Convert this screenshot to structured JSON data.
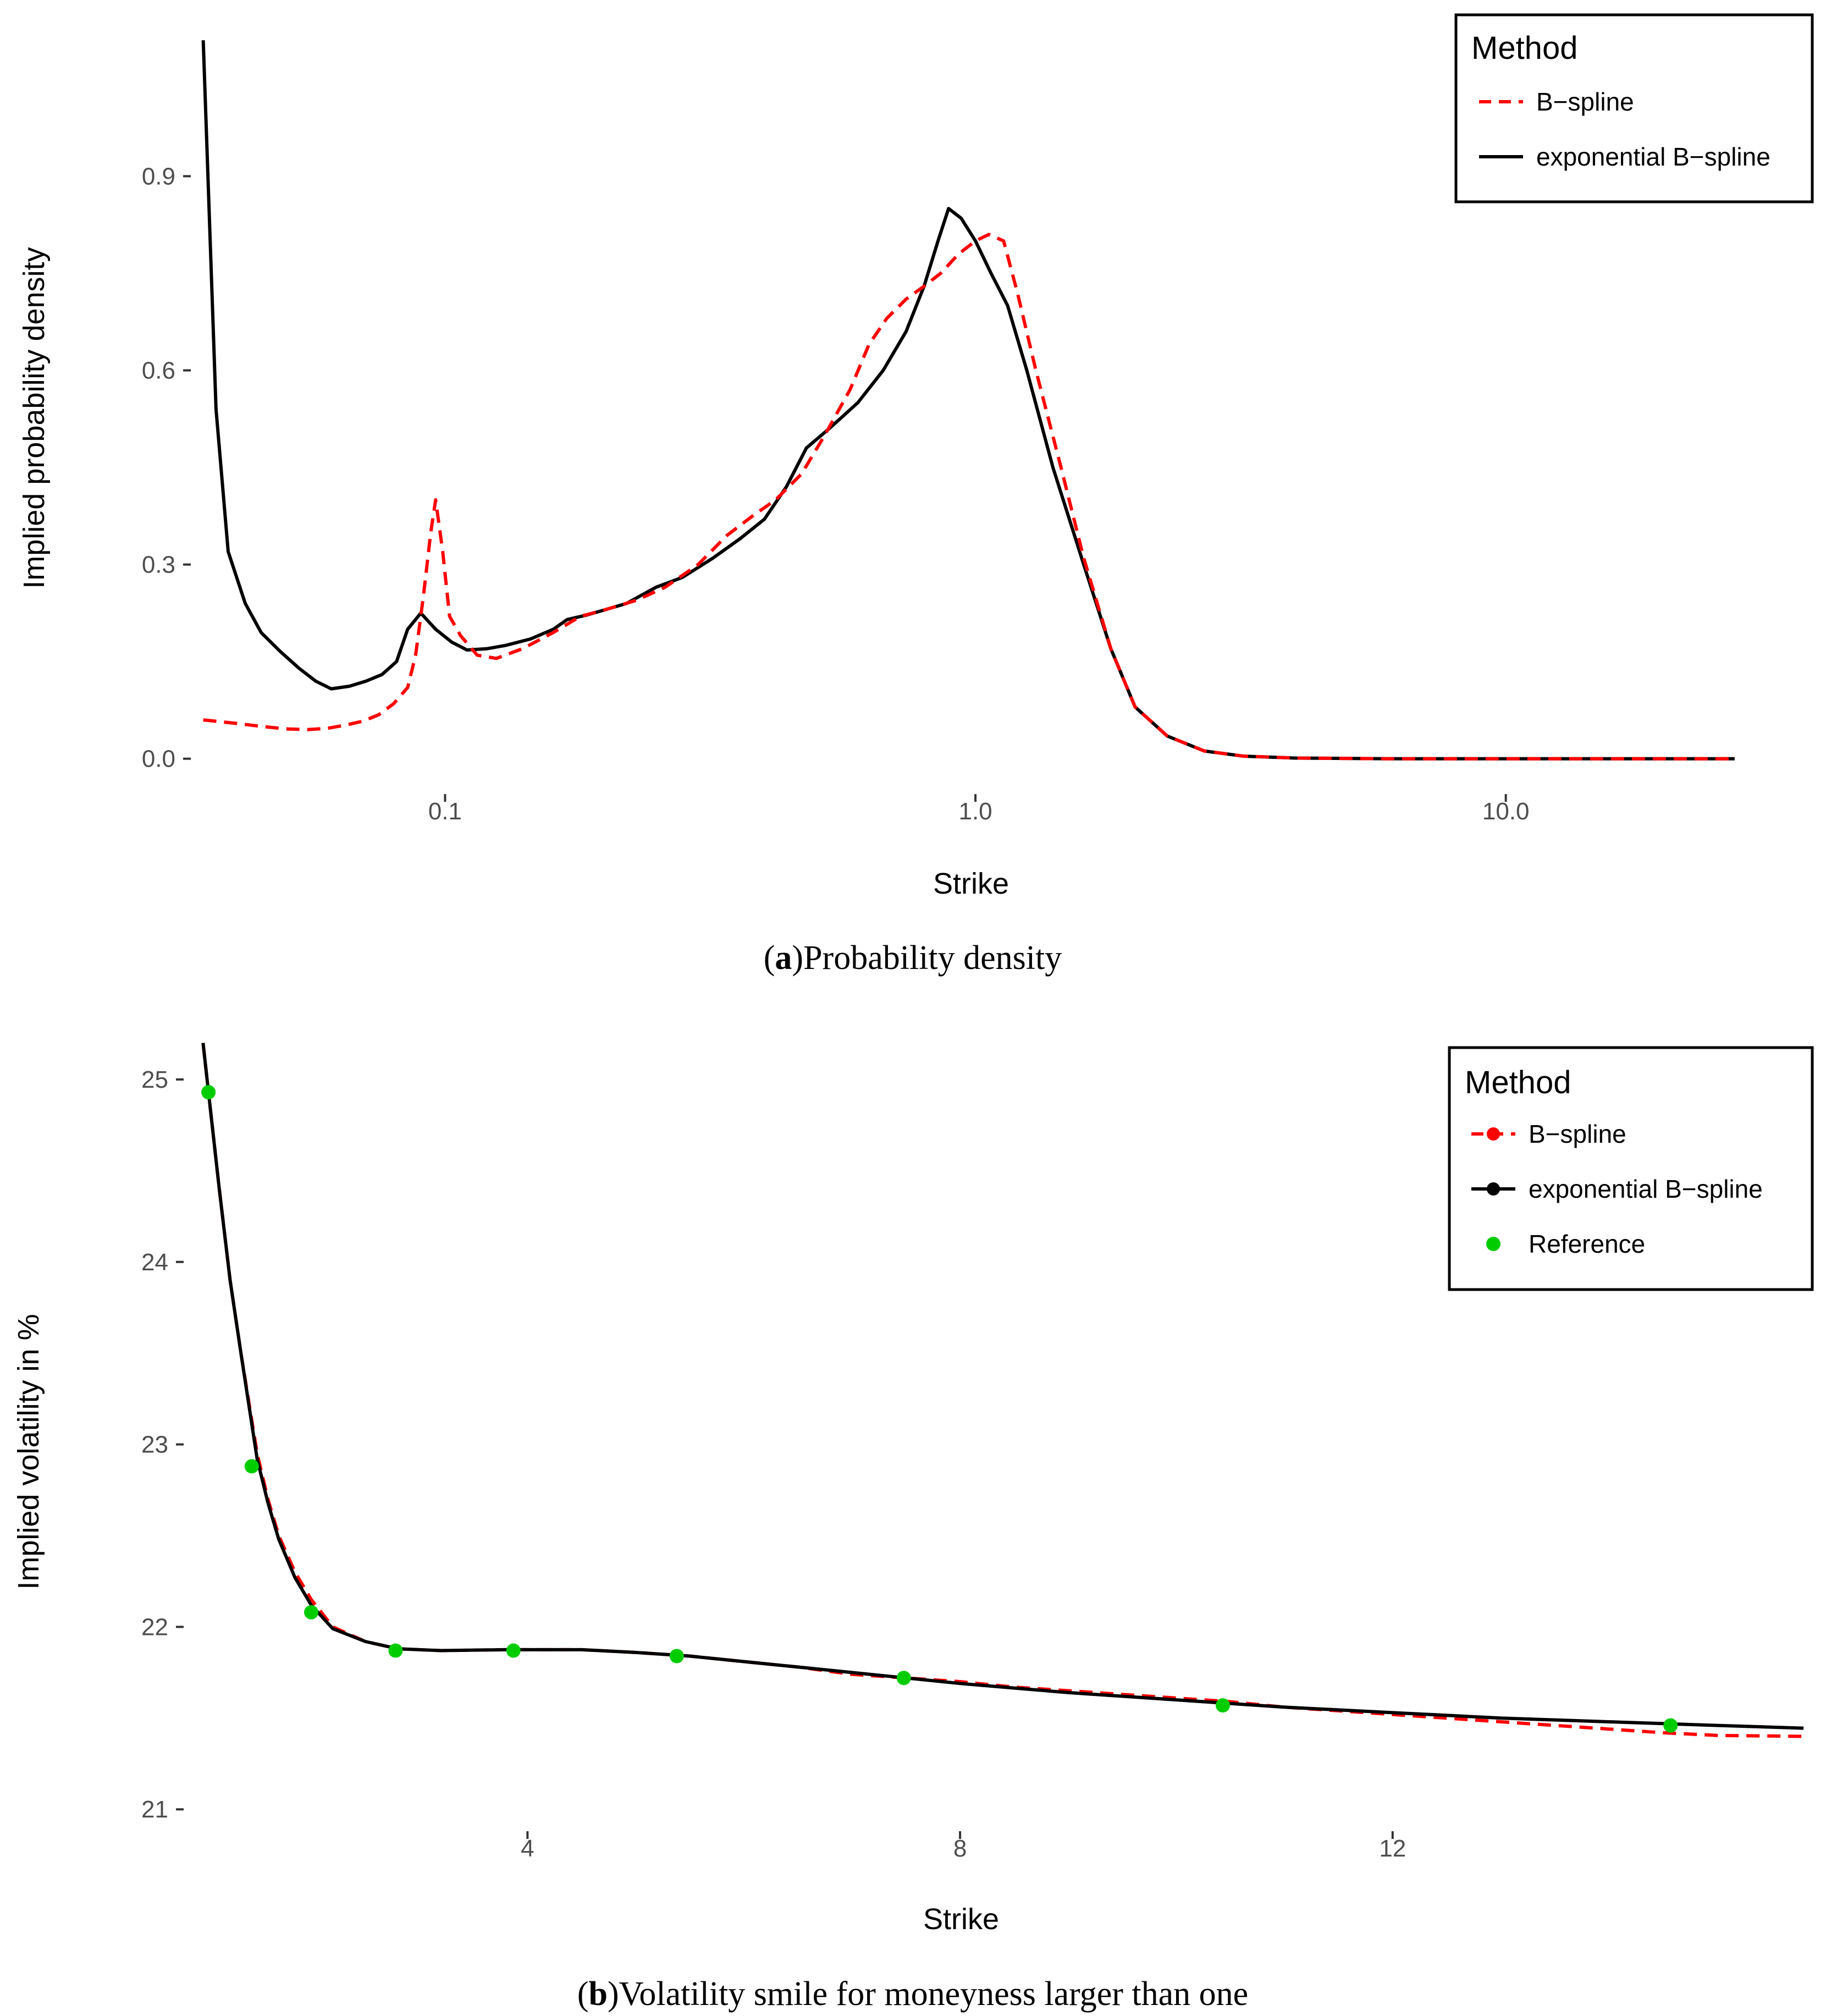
{
  "chart_data": [
    {
      "id": "a",
      "type": "line",
      "caption_letter": "a",
      "caption_text": "Probability density",
      "title": "",
      "xlabel": "Strike",
      "ylabel": "Implied probability density",
      "xscale": "log",
      "xlim": [
        0.033,
        28
      ],
      "ylim": [
        -0.03,
        1.1
      ],
      "xticks": [
        {
          "value": 0.1,
          "label": "0.1"
        },
        {
          "value": 1.0,
          "label": "1.0"
        },
        {
          "value": 10.0,
          "label": "10.0"
        }
      ],
      "yticks": [
        {
          "value": 0.0,
          "label": "0.0"
        },
        {
          "value": 0.3,
          "label": "0.3"
        },
        {
          "value": 0.6,
          "label": "0.6"
        },
        {
          "value": 0.9,
          "label": "0.9"
        }
      ],
      "legend": {
        "title": "Method",
        "position": "top-right",
        "entries": [
          "B−spline",
          "exponential B−spline"
        ]
      },
      "series": [
        {
          "name": "B−spline",
          "color": "#ff0000",
          "style": "dashed",
          "points": [
            [
              0.035,
              0.06
            ],
            [
              0.04,
              0.055
            ],
            [
              0.045,
              0.05
            ],
            [
              0.05,
              0.046
            ],
            [
              0.055,
              0.045
            ],
            [
              0.06,
              0.047
            ],
            [
              0.065,
              0.052
            ],
            [
              0.07,
              0.058
            ],
            [
              0.075,
              0.068
            ],
            [
              0.08,
              0.085
            ],
            [
              0.085,
              0.11
            ],
            [
              0.088,
              0.16
            ],
            [
              0.091,
              0.25
            ],
            [
              0.094,
              0.35
            ],
            [
              0.096,
              0.4
            ],
            [
              0.099,
              0.32
            ],
            [
              0.102,
              0.22
            ],
            [
              0.107,
              0.19
            ],
            [
              0.115,
              0.16
            ],
            [
              0.125,
              0.155
            ],
            [
              0.14,
              0.17
            ],
            [
              0.16,
              0.195
            ],
            [
              0.18,
              0.22
            ],
            [
              0.2,
              0.23
            ],
            [
              0.23,
              0.245
            ],
            [
              0.26,
              0.265
            ],
            [
              0.3,
              0.3
            ],
            [
              0.34,
              0.345
            ],
            [
              0.38,
              0.375
            ],
            [
              0.42,
              0.4
            ],
            [
              0.47,
              0.44
            ],
            [
              0.52,
              0.5
            ],
            [
              0.58,
              0.57
            ],
            [
              0.63,
              0.64
            ],
            [
              0.68,
              0.68
            ],
            [
              0.74,
              0.71
            ],
            [
              0.8,
              0.73
            ],
            [
              0.86,
              0.75
            ],
            [
              0.93,
              0.78
            ],
            [
              1.0,
              0.8
            ],
            [
              1.06,
              0.81
            ],
            [
              1.13,
              0.8
            ],
            [
              1.2,
              0.72
            ],
            [
              1.3,
              0.6
            ],
            [
              1.45,
              0.45
            ],
            [
              1.6,
              0.31
            ],
            [
              1.8,
              0.17
            ],
            [
              2.0,
              0.08
            ],
            [
              2.3,
              0.035
            ],
            [
              2.7,
              0.012
            ],
            [
              3.2,
              0.004
            ],
            [
              4.0,
              0.001
            ],
            [
              6.0,
              0.0
            ],
            [
              10.0,
              0.0
            ],
            [
              27.0,
              0.0
            ]
          ]
        },
        {
          "name": "exponential B−spline",
          "color": "#000000",
          "style": "solid",
          "points": [
            [
              0.035,
              1.11
            ],
            [
              0.037,
              0.54
            ],
            [
              0.039,
              0.32
            ],
            [
              0.042,
              0.24
            ],
            [
              0.045,
              0.195
            ],
            [
              0.049,
              0.165
            ],
            [
              0.053,
              0.14
            ],
            [
              0.057,
              0.12
            ],
            [
              0.061,
              0.108
            ],
            [
              0.066,
              0.112
            ],
            [
              0.071,
              0.12
            ],
            [
              0.076,
              0.13
            ],
            [
              0.081,
              0.15
            ],
            [
              0.085,
              0.2
            ],
            [
              0.09,
              0.225
            ],
            [
              0.096,
              0.2
            ],
            [
              0.103,
              0.18
            ],
            [
              0.11,
              0.168
            ],
            [
              0.12,
              0.17
            ],
            [
              0.13,
              0.175
            ],
            [
              0.145,
              0.185
            ],
            [
              0.16,
              0.2
            ],
            [
              0.17,
              0.215
            ],
            [
              0.185,
              0.222
            ],
            [
              0.2,
              0.23
            ],
            [
              0.22,
              0.24
            ],
            [
              0.25,
              0.265
            ],
            [
              0.28,
              0.28
            ],
            [
              0.32,
              0.31
            ],
            [
              0.36,
              0.34
            ],
            [
              0.4,
              0.37
            ],
            [
              0.44,
              0.42
            ],
            [
              0.48,
              0.48
            ],
            [
              0.53,
              0.51
            ],
            [
              0.6,
              0.55
            ],
            [
              0.67,
              0.6
            ],
            [
              0.74,
              0.66
            ],
            [
              0.8,
              0.73
            ],
            [
              0.85,
              0.8
            ],
            [
              0.89,
              0.85
            ],
            [
              0.94,
              0.835
            ],
            [
              1.0,
              0.8
            ],
            [
              1.07,
              0.75
            ],
            [
              1.15,
              0.7
            ],
            [
              1.25,
              0.6
            ],
            [
              1.4,
              0.45
            ],
            [
              1.6,
              0.3
            ],
            [
              1.8,
              0.17
            ],
            [
              2.0,
              0.08
            ],
            [
              2.3,
              0.035
            ],
            [
              2.7,
              0.012
            ],
            [
              3.2,
              0.004
            ],
            [
              4.0,
              0.001
            ],
            [
              6.0,
              0.0
            ],
            [
              10.0,
              0.0
            ],
            [
              27.0,
              0.0
            ]
          ]
        }
      ]
    },
    {
      "id": "b",
      "type": "line",
      "caption_letter": "b",
      "caption_text": "Volatility smile for moneyness larger than one",
      "title": "",
      "xlabel": "Strike",
      "ylabel": "Implied volatility in %",
      "xscale": "linear",
      "xlim": [
        0.8,
        15.85
      ],
      "ylim": [
        20.85,
        25.25
      ],
      "xticks": [
        {
          "value": 4,
          "label": "4"
        },
        {
          "value": 8,
          "label": "8"
        },
        {
          "value": 12,
          "label": "12"
        }
      ],
      "yticks": [
        {
          "value": 21,
          "label": "21"
        },
        {
          "value": 22,
          "label": "22"
        },
        {
          "value": 23,
          "label": "23"
        },
        {
          "value": 24,
          "label": "24"
        },
        {
          "value": 25,
          "label": "25"
        }
      ],
      "legend": {
        "title": "Method",
        "position": "top-right",
        "entries": [
          "B−spline",
          "exponential B−spline",
          "Reference"
        ]
      },
      "series": [
        {
          "name": "B−spline",
          "color": "#ff0000",
          "style": "dashed",
          "points": [
            [
              1.0,
              25.2
            ],
            [
              1.05,
              24.93
            ],
            [
              1.15,
              24.4
            ],
            [
              1.25,
              23.9
            ],
            [
              1.35,
              23.5
            ],
            [
              1.5,
              22.95
            ],
            [
              1.6,
              22.7
            ],
            [
              1.7,
              22.5
            ],
            [
              1.85,
              22.3
            ],
            [
              2.0,
              22.15
            ],
            [
              2.2,
              22.0
            ],
            [
              2.5,
              21.92
            ],
            [
              2.8,
              21.88
            ],
            [
              3.2,
              21.87
            ],
            [
              3.8,
              21.875
            ],
            [
              4.5,
              21.875
            ],
            [
              5.0,
              21.86
            ],
            [
              5.5,
              21.84
            ],
            [
              6.0,
              21.81
            ],
            [
              6.5,
              21.78
            ],
            [
              7.0,
              21.74
            ],
            [
              7.5,
              21.72
            ],
            [
              8.0,
              21.7
            ],
            [
              8.5,
              21.67
            ],
            [
              9.0,
              21.65
            ],
            [
              9.5,
              21.63
            ],
            [
              10.0,
              21.61
            ],
            [
              10.5,
              21.59
            ],
            [
              11.0,
              21.56
            ],
            [
              11.5,
              21.54
            ],
            [
              12.0,
              21.52
            ],
            [
              12.5,
              21.5
            ],
            [
              13.0,
              21.48
            ],
            [
              13.5,
              21.46
            ],
            [
              14.0,
              21.44
            ],
            [
              14.5,
              21.42
            ],
            [
              15.0,
              21.405
            ],
            [
              15.8,
              21.4
            ]
          ]
        },
        {
          "name": "exponential B−spline",
          "color": "#000000",
          "style": "solid",
          "points": [
            [
              1.0,
              25.2
            ],
            [
              1.05,
              24.93
            ],
            [
              1.15,
              24.4
            ],
            [
              1.25,
              23.9
            ],
            [
              1.35,
              23.5
            ],
            [
              1.5,
              22.92
            ],
            [
              1.6,
              22.68
            ],
            [
              1.7,
              22.48
            ],
            [
              1.85,
              22.27
            ],
            [
              2.0,
              22.12
            ],
            [
              2.2,
              21.99
            ],
            [
              2.5,
              21.92
            ],
            [
              2.8,
              21.88
            ],
            [
              3.2,
              21.87
            ],
            [
              3.8,
              21.875
            ],
            [
              4.5,
              21.875
            ],
            [
              5.0,
              21.86
            ],
            [
              5.5,
              21.84
            ],
            [
              6.0,
              21.81
            ],
            [
              6.5,
              21.78
            ],
            [
              7.0,
              21.75
            ],
            [
              7.5,
              21.72
            ],
            [
              8.0,
              21.69
            ],
            [
              8.5,
              21.665
            ],
            [
              9.0,
              21.64
            ],
            [
              9.5,
              21.62
            ],
            [
              10.0,
              21.6
            ],
            [
              10.5,
              21.58
            ],
            [
              11.0,
              21.56
            ],
            [
              11.5,
              21.545
            ],
            [
              12.0,
              21.53
            ],
            [
              12.5,
              21.515
            ],
            [
              13.0,
              21.5
            ],
            [
              13.5,
              21.49
            ],
            [
              14.0,
              21.48
            ],
            [
              14.5,
              21.47
            ],
            [
              15.0,
              21.46
            ],
            [
              15.8,
              21.445
            ]
          ]
        },
        {
          "name": "Reference",
          "color": "#00cc00",
          "style": "points",
          "points": [
            [
              1.05,
              24.93
            ],
            [
              1.45,
              22.88
            ],
            [
              2.0,
              22.08
            ],
            [
              2.78,
              21.87
            ],
            [
              3.87,
              21.87
            ],
            [
              5.38,
              21.84
            ],
            [
              7.48,
              21.72
            ],
            [
              10.43,
              21.57
            ],
            [
              14.57,
              21.46
            ]
          ]
        }
      ]
    }
  ]
}
